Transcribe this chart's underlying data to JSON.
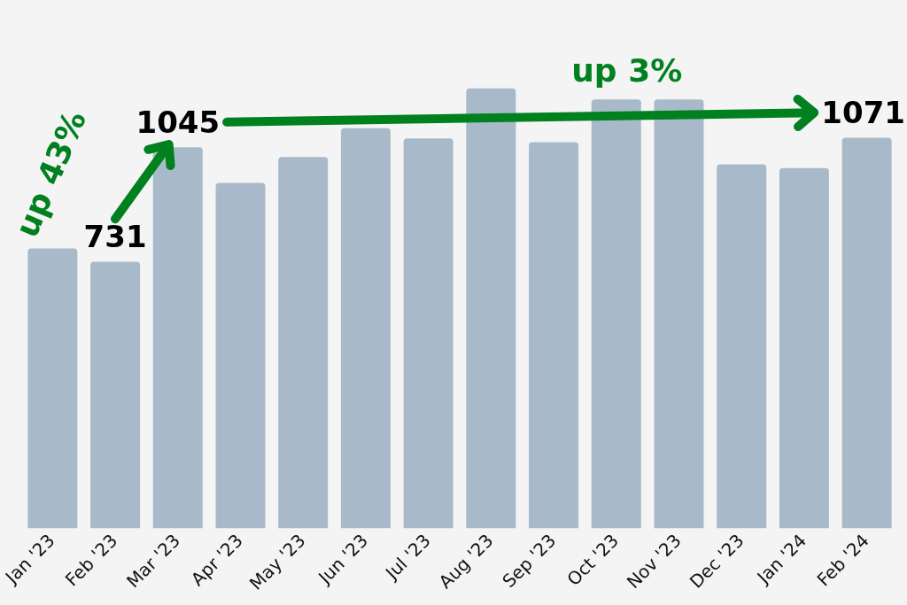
{
  "chart_data": {
    "type": "bar",
    "categories": [
      "Jan '23",
      "Feb '23",
      "Mar '23",
      "Apr '23",
      "May '23",
      "Jun '23",
      "Jul '23",
      "Aug '23",
      "Sep '23",
      "Oct '23",
      "Nov '23",
      "Dec '23",
      "Jan '24",
      "Feb '24"
    ],
    "values": [
      767,
      731,
      1045,
      947,
      1018,
      1097,
      1069,
      1206,
      1059,
      1176,
      1176,
      998,
      988,
      1071
    ],
    "value_labels": [
      null,
      "731",
      "1045",
      null,
      null,
      null,
      null,
      null,
      null,
      null,
      null,
      null,
      null,
      "1071"
    ],
    "color": "#a8bac9",
    "annotations": [
      "up 43%",
      "up 3%"
    ],
    "grid": false,
    "legend": false
  }
}
